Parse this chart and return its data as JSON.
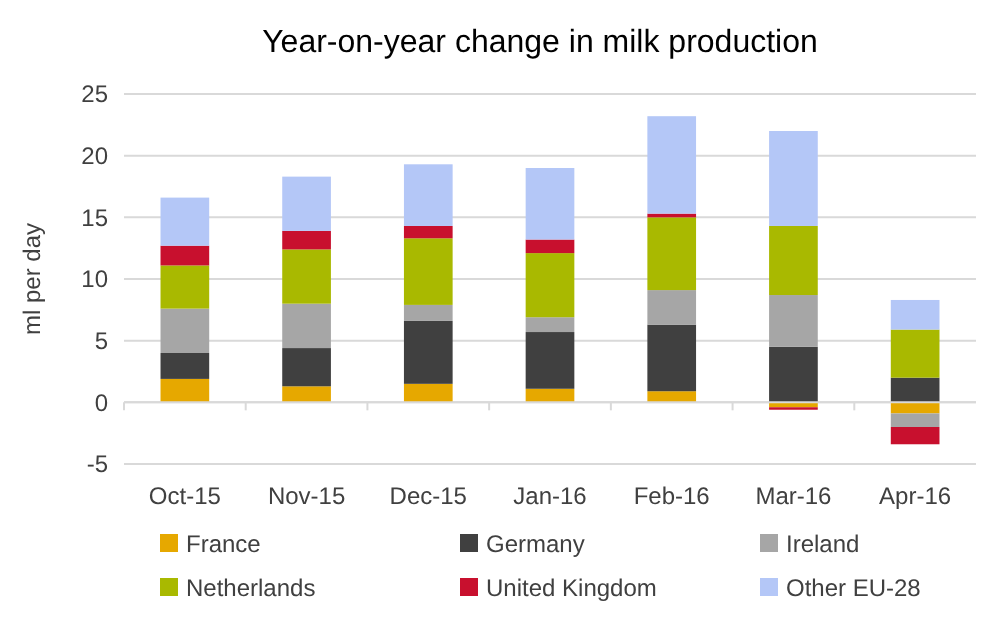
{
  "chart_data": {
    "type": "bar",
    "stacked": true,
    "title": "Year-on-year change in milk production",
    "ylabel": "ml per day",
    "categories": [
      "Oct-15",
      "Nov-15",
      "Dec-15",
      "Jan-16",
      "Feb-16",
      "Mar-16",
      "Apr-16"
    ],
    "series": [
      {
        "name": "France",
        "color": "#e6a800",
        "values": [
          1.9,
          1.3,
          1.5,
          1.1,
          0.9,
          -0.4,
          -0.9
        ]
      },
      {
        "name": "Germany",
        "color": "#404040",
        "values": [
          2.1,
          3.1,
          5.1,
          4.6,
          5.4,
          4.5,
          2.0
        ]
      },
      {
        "name": "Ireland",
        "color": "#a6a6a6",
        "values": [
          3.6,
          3.6,
          1.3,
          1.2,
          2.8,
          4.2,
          -1.1
        ]
      },
      {
        "name": "Netherlands",
        "color": "#a9b900",
        "values": [
          3.5,
          4.4,
          5.4,
          5.2,
          5.9,
          5.6,
          3.9
        ]
      },
      {
        "name": "United Kingdom",
        "color": "#c8102e",
        "values": [
          1.6,
          1.5,
          1.0,
          1.1,
          0.3,
          -0.2,
          -1.4
        ]
      },
      {
        "name": "Other EU-28",
        "color": "#b4c7f7",
        "values": [
          3.9,
          4.4,
          5.0,
          5.8,
          7.9,
          7.7,
          2.4
        ]
      }
    ],
    "ylim": [
      -5,
      25
    ],
    "yticks": [
      -5,
      0,
      5,
      10,
      15,
      20,
      25
    ],
    "grid": "y",
    "legend": "bottom"
  }
}
